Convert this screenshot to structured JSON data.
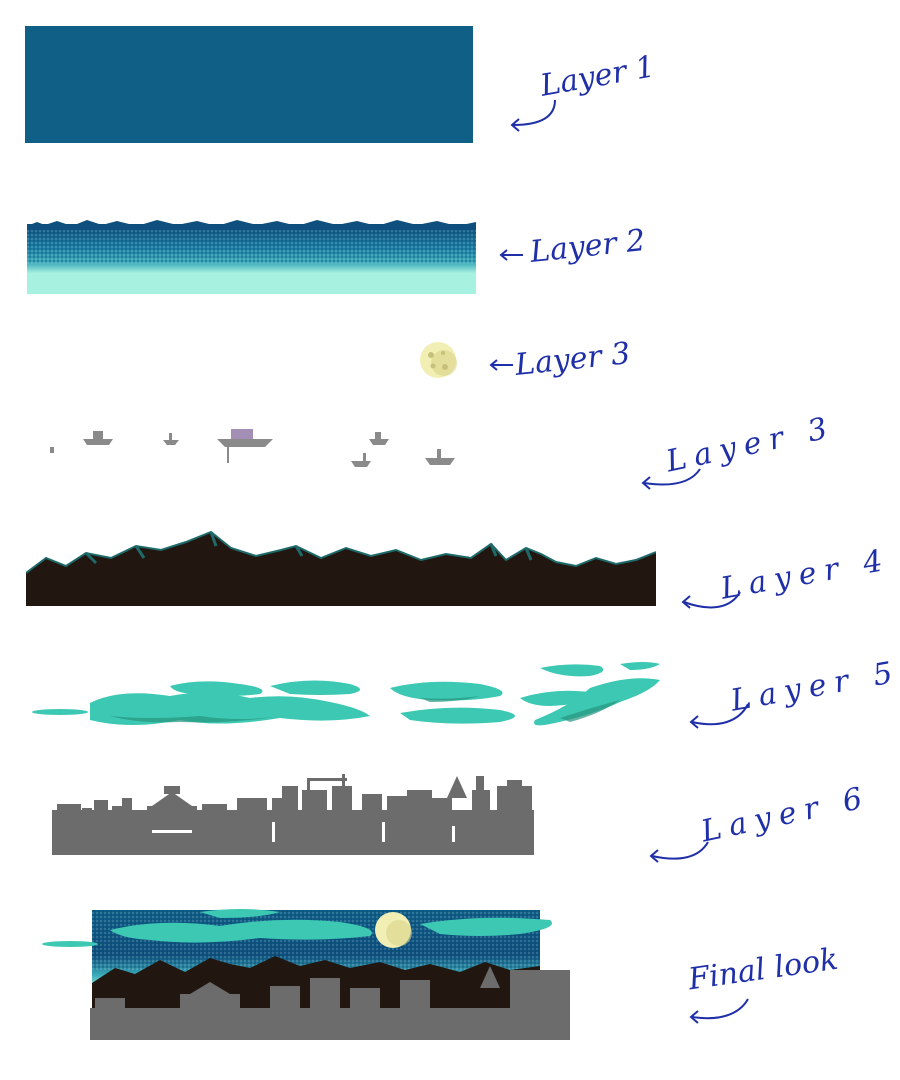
{
  "layers": [
    {
      "id": "layer1",
      "label": "Layer 1",
      "description": "solid sky fill"
    },
    {
      "id": "layer2",
      "label": "Layer 2",
      "description": "sky gradient with dither"
    },
    {
      "id": "layer3a",
      "label": "Layer 3",
      "description": "moon"
    },
    {
      "id": "layer3b",
      "label": "Layer 3",
      "description": "floating ships"
    },
    {
      "id": "layer4",
      "label": "Layer 4",
      "description": "mountains"
    },
    {
      "id": "layer5",
      "label": "Layer 5",
      "description": "clouds"
    },
    {
      "id": "layer6",
      "label": "Layer 6",
      "description": "city silhouette"
    },
    {
      "id": "final",
      "label": "Final look",
      "description": "composite"
    }
  ],
  "colors": {
    "sky": "#0f5f87",
    "sky_dark": "#0e4f7d",
    "gradient_light": "#a6f1e0",
    "gradient_mid": "#3aaab9",
    "moon": "#f2efb4",
    "moon_shade": "#d8d38b",
    "ships": "#8a8a8a",
    "mountains": "#211710",
    "mountain_edge": "#1e6a6a",
    "clouds": "#3cc8b2",
    "clouds_dark": "#27947f",
    "city": "#6c6c6c",
    "ink": "#1f2fa8"
  }
}
